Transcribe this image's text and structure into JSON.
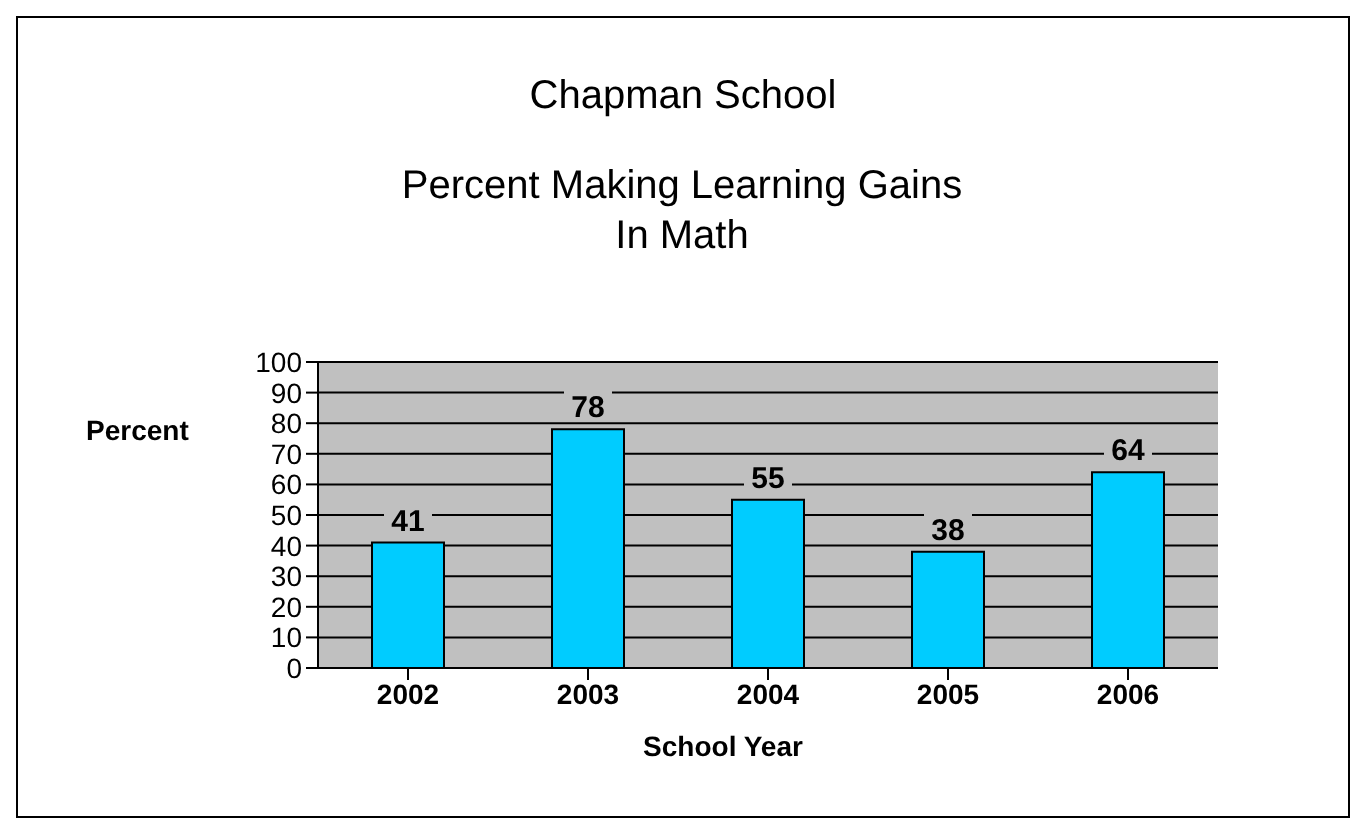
{
  "chart_data": {
    "type": "bar",
    "title": "Chapman School",
    "subtitle": "Percent Making Learning Gains In Math",
    "xlabel": "School Year",
    "ylabel": "Percent",
    "categories": [
      "2002",
      "2003",
      "2004",
      "2005",
      "2006"
    ],
    "values": [
      41,
      78,
      55,
      38,
      64
    ],
    "color": "#00ccff",
    "ylim": [
      0,
      100
    ],
    "yticks": [
      0,
      10,
      20,
      30,
      40,
      50,
      60,
      70,
      80,
      90,
      100
    ],
    "grid": "y",
    "data_labels": true
  }
}
